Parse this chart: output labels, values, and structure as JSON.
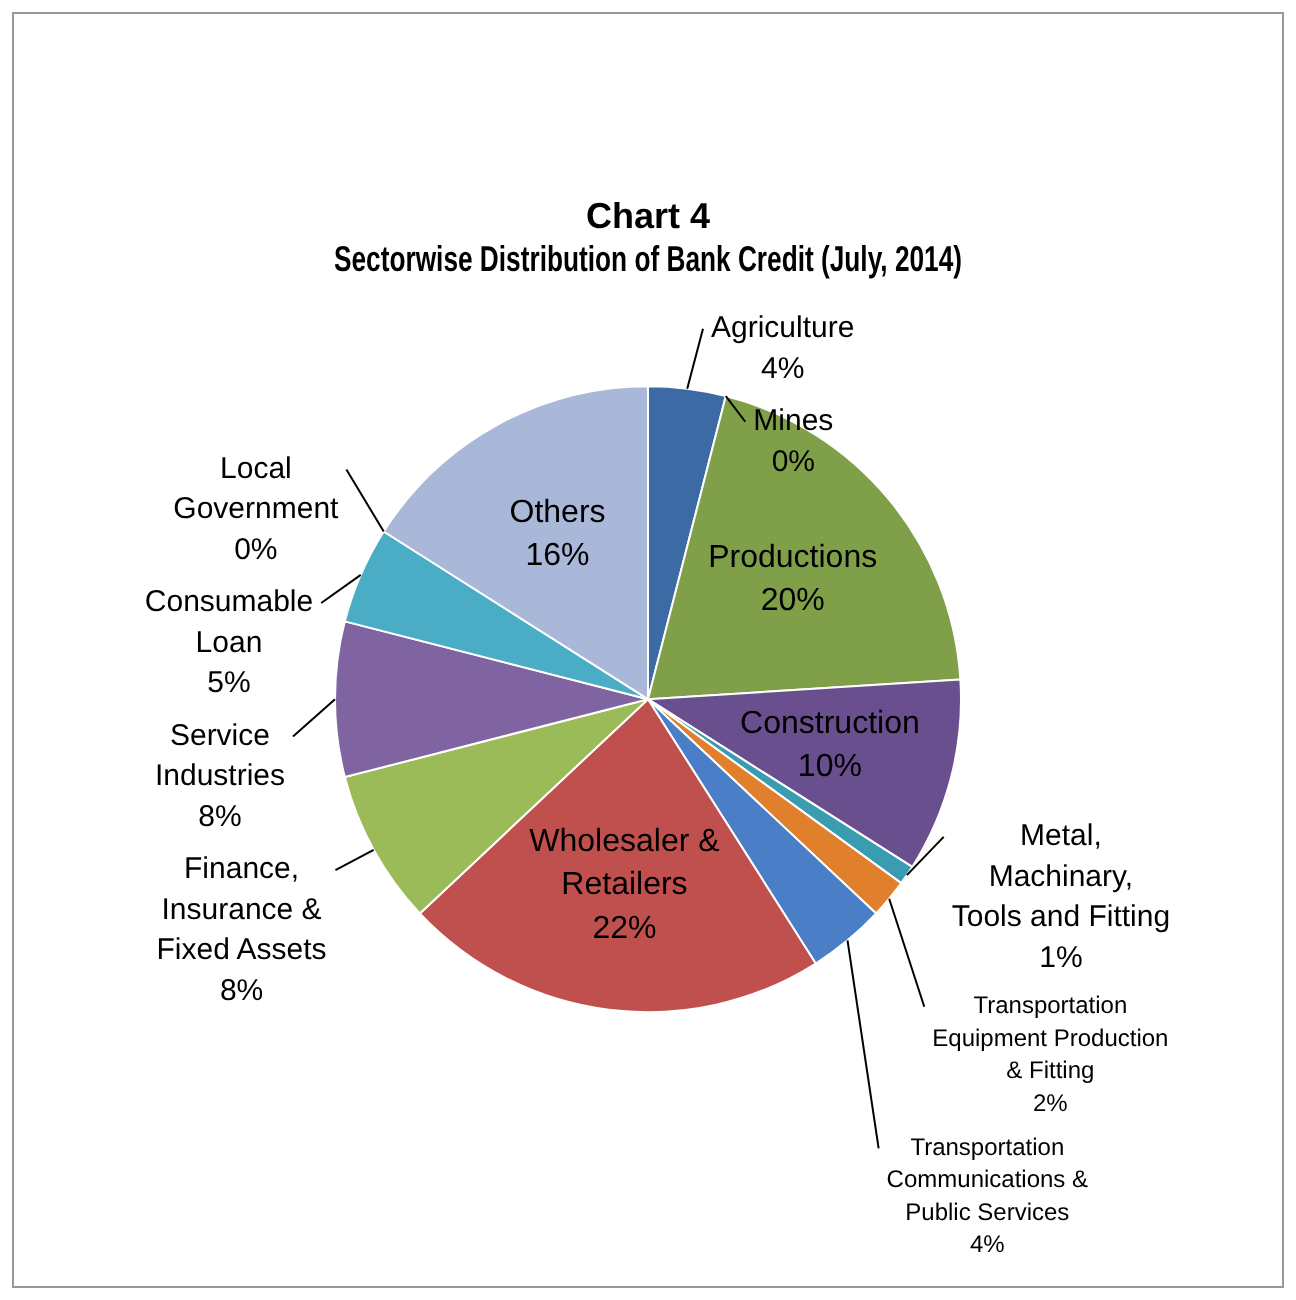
{
  "chart_data": {
    "type": "pie",
    "title": "Chart 4\nSectorwise Distribution of Bank Credit (July, 2014)",
    "categories": [
      "Agriculture",
      "Mines",
      "Productions",
      "Construction",
      "Metal, Machinary, Tools and Fitting",
      "Transportation Equipment Production & Fitting",
      "Transportation Communications & Public Services",
      "Wholesaler & Retailers",
      "Finance, Insurance & Fixed Assets",
      "Service Industries",
      "Consumable Loan",
      "Local Government",
      "Others"
    ],
    "values": [
      4,
      0,
      20,
      10,
      1,
      2,
      4,
      22,
      8,
      8,
      5,
      0,
      16
    ],
    "colors": [
      "#3c6aa4",
      "#c0392b",
      "#7f9f48",
      "#6a4f8f",
      "#3a9cb0",
      "#e07f2c",
      "#4a7fc8",
      "#c0504d",
      "#9bbb59",
      "#8064a2",
      "#4bacc6",
      "#f79646",
      "#a9b8d8"
    ],
    "value_labels": [
      "4%",
      "0%",
      "20%",
      "10%",
      "1%",
      "2%",
      "4%",
      "22%",
      "8%",
      "8%",
      "5%",
      "0%",
      "16%"
    ]
  }
}
